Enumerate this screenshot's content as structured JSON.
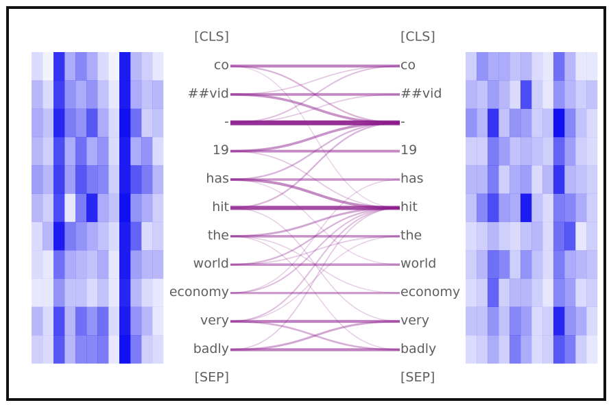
{
  "tokens": {
    "left": [
      "[CLS]",
      "co",
      "##vid",
      "-",
      "19",
      "has",
      "hit",
      "the",
      "world",
      "economy",
      "very",
      "badly",
      "[SEP]"
    ],
    "right": [
      "[CLS]",
      "co",
      "##vid",
      "-",
      "19",
      "has",
      "hit",
      "the",
      "world",
      "economy",
      "very",
      "badly",
      "[SEP]"
    ]
  },
  "colors": {
    "line": "#8b1a8b",
    "heatmap": "#1010f0"
  },
  "links": [
    {
      "from": 1,
      "to": 1,
      "weight": 0.55
    },
    {
      "from": 1,
      "to": 3,
      "weight": 0.25
    },
    {
      "from": 1,
      "to": 6,
      "weight": 0.1
    },
    {
      "from": 2,
      "to": 2,
      "weight": 0.5
    },
    {
      "from": 2,
      "to": 3,
      "weight": 0.45
    },
    {
      "from": 2,
      "to": 1,
      "weight": 0.15
    },
    {
      "from": 3,
      "to": 3,
      "weight": 1.0
    },
    {
      "from": 3,
      "to": 1,
      "weight": 0.2
    },
    {
      "from": 3,
      "to": 2,
      "weight": 0.15
    },
    {
      "from": 4,
      "to": 4,
      "weight": 0.5
    },
    {
      "from": 4,
      "to": 3,
      "weight": 0.45
    },
    {
      "from": 4,
      "to": 6,
      "weight": 0.15
    },
    {
      "from": 5,
      "to": 5,
      "weight": 0.45
    },
    {
      "from": 5,
      "to": 6,
      "weight": 0.5
    },
    {
      "from": 5,
      "to": 3,
      "weight": 0.25
    },
    {
      "from": 5,
      "to": 8,
      "weight": 0.1
    },
    {
      "from": 6,
      "to": 6,
      "weight": 0.85
    },
    {
      "from": 6,
      "to": 3,
      "weight": 0.25
    },
    {
      "from": 6,
      "to": 10,
      "weight": 0.12
    },
    {
      "from": 7,
      "to": 7,
      "weight": 0.45
    },
    {
      "from": 7,
      "to": 6,
      "weight": 0.35
    },
    {
      "from": 7,
      "to": 9,
      "weight": 0.12
    },
    {
      "from": 7,
      "to": 11,
      "weight": 0.12
    },
    {
      "from": 8,
      "to": 8,
      "weight": 0.45
    },
    {
      "from": 8,
      "to": 6,
      "weight": 0.25
    },
    {
      "from": 8,
      "to": 7,
      "weight": 0.15
    },
    {
      "from": 9,
      "to": 9,
      "weight": 0.4
    },
    {
      "from": 9,
      "to": 6,
      "weight": 0.2
    },
    {
      "from": 9,
      "to": 5,
      "weight": 0.12
    },
    {
      "from": 10,
      "to": 10,
      "weight": 0.55
    },
    {
      "from": 10,
      "to": 11,
      "weight": 0.3
    },
    {
      "from": 10,
      "to": 6,
      "weight": 0.2
    },
    {
      "from": 10,
      "to": 7,
      "weight": 0.12
    },
    {
      "from": 11,
      "to": 11,
      "weight": 0.55
    },
    {
      "from": 11,
      "to": 10,
      "weight": 0.35
    },
    {
      "from": 11,
      "to": 6,
      "weight": 0.15
    }
  ],
  "heatmaps": {
    "left": [
      [
        0.15,
        0.05,
        0.85,
        0.35,
        0.5,
        0.35,
        0.15,
        0.05,
        0.95,
        0.3,
        0.2,
        0.1
      ],
      [
        0.3,
        0.15,
        0.8,
        0.45,
        0.35,
        0.45,
        0.25,
        0.1,
        0.95,
        0.35,
        0.25,
        0.3
      ],
      [
        0.35,
        0.25,
        0.9,
        0.55,
        0.45,
        0.7,
        0.35,
        0.15,
        1.0,
        0.6,
        0.2,
        0.25
      ],
      [
        0.3,
        0.2,
        0.75,
        0.35,
        0.6,
        0.35,
        0.45,
        0.15,
        0.95,
        0.35,
        0.45,
        0.15
      ],
      [
        0.4,
        0.3,
        0.8,
        0.4,
        0.7,
        0.55,
        0.5,
        0.2,
        0.95,
        0.7,
        0.55,
        0.3
      ],
      [
        0.3,
        0.2,
        0.75,
        0.1,
        0.55,
        0.9,
        0.35,
        0.25,
        1.0,
        0.45,
        0.35,
        0.2
      ],
      [
        0.15,
        0.3,
        0.95,
        0.55,
        0.45,
        0.35,
        0.25,
        0.15,
        0.95,
        0.65,
        0.15,
        0.2
      ],
      [
        0.15,
        0.1,
        0.6,
        0.35,
        0.3,
        0.25,
        0.35,
        0.1,
        0.95,
        0.4,
        0.3,
        0.3
      ],
      [
        0.1,
        0.1,
        0.45,
        0.25,
        0.25,
        0.15,
        0.25,
        0.1,
        0.9,
        0.3,
        0.15,
        0.1
      ],
      [
        0.3,
        0.15,
        0.75,
        0.3,
        0.6,
        0.45,
        0.6,
        0.15,
        0.95,
        0.45,
        0.3,
        0.1
      ],
      [
        0.2,
        0.15,
        0.7,
        0.3,
        0.5,
        0.5,
        0.55,
        0.1,
        1.0,
        0.55,
        0.2,
        0.15
      ]
    ],
    "right": [
      [
        0.2,
        0.45,
        0.35,
        0.35,
        0.25,
        0.3,
        0.15,
        0.1,
        0.6,
        0.3,
        0.1,
        0.1
      ],
      [
        0.3,
        0.25,
        0.4,
        0.3,
        0.15,
        0.75,
        0.2,
        0.1,
        0.45,
        0.3,
        0.2,
        0.25
      ],
      [
        0.45,
        0.3,
        0.85,
        0.25,
        0.45,
        0.4,
        0.2,
        0.25,
        1.0,
        0.5,
        0.25,
        0.15
      ],
      [
        0.2,
        0.2,
        0.55,
        0.4,
        0.25,
        0.3,
        0.25,
        0.2,
        0.65,
        0.4,
        0.2,
        0.15
      ],
      [
        0.3,
        0.3,
        0.55,
        0.2,
        0.35,
        0.4,
        0.15,
        0.3,
        0.85,
        0.3,
        0.25,
        0.2
      ],
      [
        0.25,
        0.5,
        0.75,
        0.4,
        0.35,
        0.95,
        0.25,
        0.15,
        0.55,
        0.5,
        0.35,
        0.2
      ],
      [
        0.15,
        0.2,
        0.3,
        0.2,
        0.15,
        0.25,
        0.3,
        0.15,
        0.6,
        0.7,
        0.1,
        0.2
      ],
      [
        0.2,
        0.3,
        0.6,
        0.5,
        0.2,
        0.45,
        0.25,
        0.15,
        0.55,
        0.35,
        0.3,
        0.25
      ],
      [
        0.15,
        0.2,
        0.65,
        0.2,
        0.3,
        0.3,
        0.2,
        0.1,
        0.5,
        0.4,
        0.15,
        0.2
      ],
      [
        0.25,
        0.25,
        0.45,
        0.25,
        0.5,
        0.4,
        0.15,
        0.2,
        0.9,
        0.45,
        0.35,
        0.15
      ],
      [
        0.15,
        0.2,
        0.35,
        0.2,
        0.55,
        0.35,
        0.15,
        0.2,
        0.7,
        0.55,
        0.2,
        0.1
      ]
    ]
  }
}
